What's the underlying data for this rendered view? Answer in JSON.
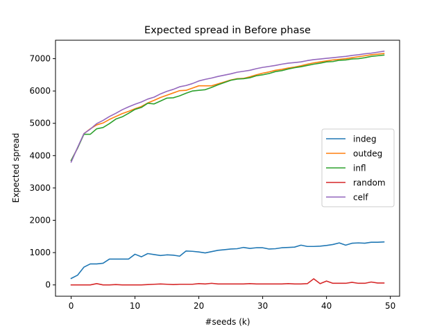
{
  "chart_data": {
    "type": "line",
    "title": "Expected spread in Before phase",
    "xlabel": "#seeds (k)",
    "ylabel": "Expected spread",
    "xlim": [
      -2.45,
      51.45
    ],
    "ylim": [
      -350,
      7570
    ],
    "xticks": [
      0,
      10,
      20,
      30,
      40,
      50
    ],
    "yticks": [
      0,
      1000,
      2000,
      3000,
      4000,
      5000,
      6000,
      7000
    ],
    "grid": false,
    "legend_position": "center-right",
    "x": [
      0,
      1,
      2,
      3,
      4,
      5,
      6,
      7,
      8,
      9,
      10,
      11,
      12,
      13,
      14,
      15,
      16,
      17,
      18,
      19,
      20,
      21,
      22,
      23,
      24,
      25,
      26,
      27,
      28,
      29,
      30,
      31,
      32,
      33,
      34,
      35,
      36,
      37,
      38,
      39,
      40,
      41,
      42,
      43,
      44,
      45,
      46,
      47,
      48,
      49
    ],
    "series": [
      {
        "name": "indeg",
        "color": "#1f77b4",
        "values": [
          200,
          300,
          550,
          650,
          650,
          670,
          800,
          800,
          800,
          800,
          950,
          870,
          970,
          940,
          910,
          930,
          920,
          890,
          1050,
          1040,
          1020,
          990,
          1030,
          1070,
          1090,
          1110,
          1120,
          1160,
          1130,
          1150,
          1150,
          1110,
          1120,
          1150,
          1160,
          1170,
          1230,
          1190,
          1190,
          1200,
          1220,
          1250,
          1300,
          1230,
          1290,
          1300,
          1290,
          1320,
          1320,
          1330
        ]
      },
      {
        "name": "outdeg",
        "color": "#ff7f0e",
        "values": [
          3850,
          4230,
          4680,
          4830,
          4950,
          5010,
          5120,
          5210,
          5300,
          5370,
          5450,
          5520,
          5630,
          5710,
          5800,
          5870,
          5940,
          6010,
          6020,
          6090,
          6160,
          6160,
          6160,
          6220,
          6280,
          6340,
          6380,
          6390,
          6440,
          6500,
          6550,
          6590,
          6640,
          6670,
          6710,
          6740,
          6780,
          6830,
          6870,
          6900,
          6930,
          6960,
          6980,
          7000,
          7030,
          7060,
          7090,
          7120,
          7140,
          7160
        ]
      },
      {
        "name": "infl",
        "color": "#2ca02c",
        "values": [
          3850,
          4230,
          4660,
          4660,
          4830,
          4870,
          4990,
          5130,
          5200,
          5310,
          5430,
          5490,
          5620,
          5600,
          5690,
          5780,
          5790,
          5850,
          5930,
          6000,
          6020,
          6040,
          6110,
          6190,
          6260,
          6330,
          6370,
          6380,
          6410,
          6470,
          6500,
          6540,
          6600,
          6630,
          6680,
          6720,
          6750,
          6790,
          6830,
          6860,
          6900,
          6910,
          6950,
          6960,
          6990,
          7000,
          7030,
          7070,
          7090,
          7110
        ]
      },
      {
        "name": "random",
        "color": "#d62728",
        "values": [
          0,
          0,
          0,
          0,
          40,
          0,
          0,
          10,
          0,
          0,
          0,
          0,
          10,
          20,
          30,
          20,
          10,
          20,
          20,
          20,
          40,
          30,
          50,
          30,
          30,
          30,
          30,
          30,
          40,
          30,
          30,
          30,
          30,
          30,
          40,
          30,
          30,
          40,
          190,
          40,
          120,
          50,
          50,
          50,
          80,
          50,
          50,
          90,
          60,
          60
        ]
      },
      {
        "name": "celf",
        "color": "#9467bd",
        "values": [
          3800,
          4250,
          4680,
          4820,
          4990,
          5090,
          5210,
          5310,
          5420,
          5510,
          5590,
          5660,
          5750,
          5810,
          5910,
          5990,
          6050,
          6130,
          6170,
          6230,
          6310,
          6360,
          6400,
          6450,
          6490,
          6530,
          6580,
          6610,
          6640,
          6690,
          6730,
          6760,
          6790,
          6830,
          6860,
          6880,
          6900,
          6940,
          6970,
          6990,
          7010,
          7030,
          7050,
          7070,
          7100,
          7120,
          7150,
          7170,
          7200,
          7230
        ]
      }
    ]
  }
}
